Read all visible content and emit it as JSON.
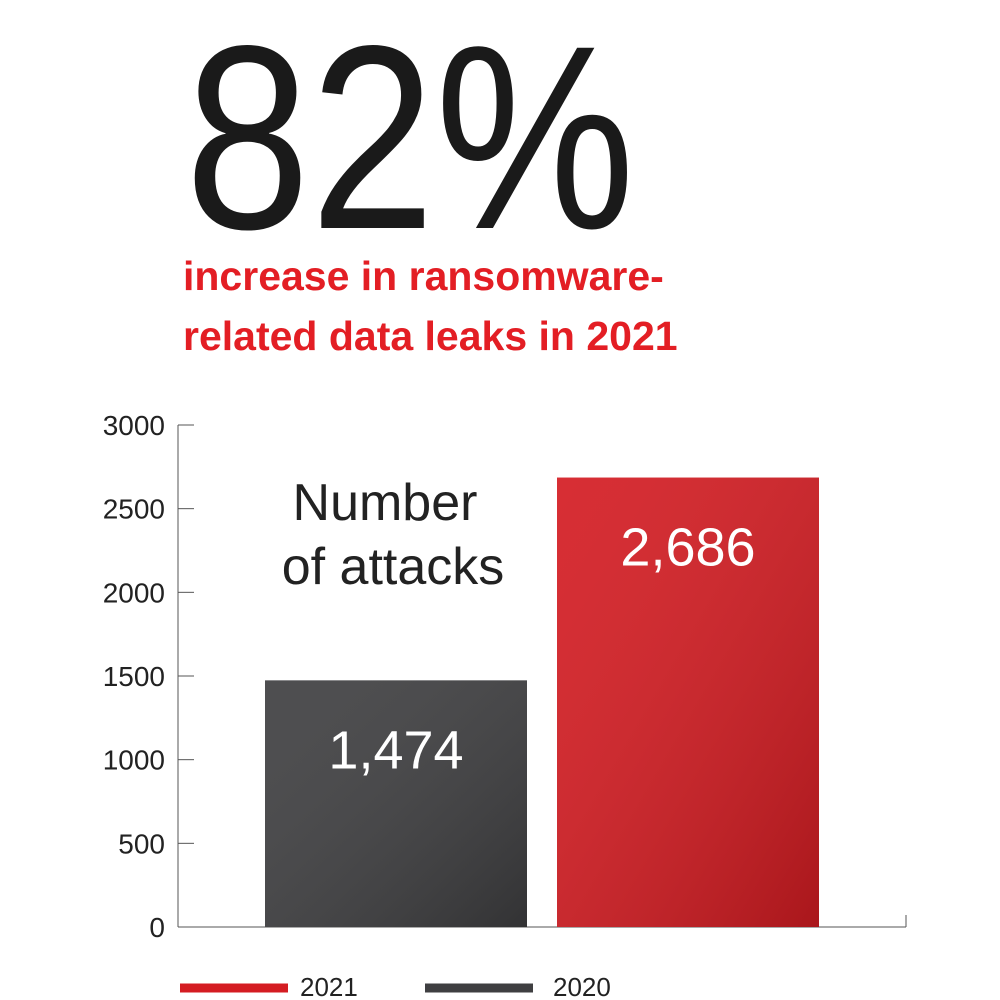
{
  "chart_data": {
    "type": "bar",
    "headline": "82%",
    "subtitle": [
      "increase in ransomware-",
      "related data leaks in 2021"
    ],
    "annotation": [
      "Number",
      "of attacks"
    ],
    "categories": [
      null
    ],
    "series": [
      {
        "name": "2020",
        "color": "#3f3f41",
        "values": [
          1474
        ],
        "value_labels": [
          "1,474"
        ]
      },
      {
        "name": "2021",
        "color": "#d41c22",
        "values": [
          2686
        ],
        "value_labels": [
          "2,686"
        ]
      }
    ],
    "ylim": [
      0,
      3000
    ],
    "yticks": [
      0,
      500,
      1000,
      1500,
      2000,
      2500,
      3000
    ]
  }
}
